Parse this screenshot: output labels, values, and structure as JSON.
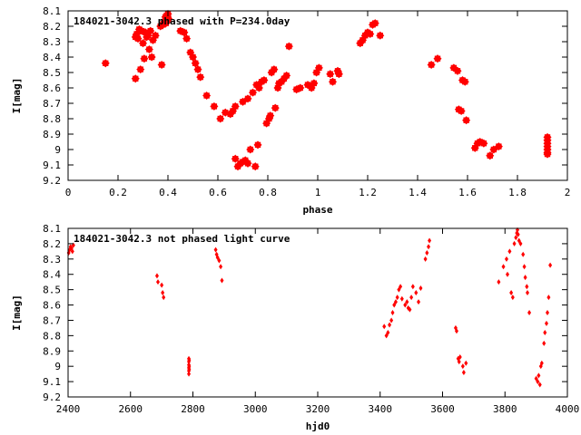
{
  "colors": {
    "points": "#ff0000",
    "axes": "#000000",
    "background": "#ffffff"
  },
  "chart_data": [
    {
      "type": "scatter",
      "title": "184021-3042.3 phased with P=234.0day",
      "xlabel": "phase",
      "ylabel": "I[mag]",
      "xlim": [
        0,
        2
      ],
      "ylim": [
        9.2,
        8.1
      ],
      "y_inverted": true,
      "grid": false,
      "xticks": [
        0,
        0.2,
        0.4,
        0.6,
        0.8,
        1,
        1.2,
        1.4,
        1.6,
        1.8,
        2
      ],
      "xtick_labels": [
        "0",
        "0.2",
        "0.4",
        "0.6",
        "0.8",
        "1",
        "1.2",
        "1.4",
        "1.6",
        "1.8",
        "2"
      ],
      "yticks": [
        8.1,
        8.2,
        8.3,
        8.4,
        8.5,
        8.6,
        8.7,
        8.8,
        8.9,
        9,
        9.1,
        9.2
      ],
      "ytick_labels": [
        "8.1",
        "8.2",
        "8.3",
        "8.4",
        "8.5",
        "8.6",
        "8.7",
        "8.8",
        "8.9",
        "9",
        "9.1",
        "9.2"
      ],
      "series": [
        {
          "points": [
            [
              0.15,
              8.44
            ],
            [
              0.27,
              8.27
            ],
            [
              0.27,
              8.54
            ],
            [
              0.275,
              8.25
            ],
            [
              0.28,
              8.28
            ],
            [
              0.285,
              8.22
            ],
            [
              0.29,
              8.48
            ],
            [
              0.295,
              8.23
            ],
            [
              0.3,
              8.31
            ],
            [
              0.305,
              8.41
            ],
            [
              0.31,
              8.24
            ],
            [
              0.315,
              8.27
            ],
            [
              0.32,
              8.26
            ],
            [
              0.325,
              8.35
            ],
            [
              0.33,
              8.23
            ],
            [
              0.335,
              8.4
            ],
            [
              0.34,
              8.29
            ],
            [
              0.35,
              8.26
            ],
            [
              0.37,
              8.2
            ],
            [
              0.375,
              8.45
            ],
            [
              0.38,
              8.19
            ],
            [
              0.385,
              8.17
            ],
            [
              0.39,
              8.14
            ],
            [
              0.392,
              8.18
            ],
            [
              0.395,
              8.13
            ],
            [
              0.398,
              8.16
            ],
            [
              0.4,
              8.12
            ],
            [
              0.402,
              8.15
            ],
            [
              0.45,
              8.23
            ],
            [
              0.465,
              8.24
            ],
            [
              0.475,
              8.28
            ],
            [
              0.49,
              8.37
            ],
            [
              0.5,
              8.4
            ],
            [
              0.51,
              8.44
            ],
            [
              0.52,
              8.48
            ],
            [
              0.53,
              8.53
            ],
            [
              0.555,
              8.65
            ],
            [
              0.585,
              8.72
            ],
            [
              0.61,
              8.8
            ],
            [
              0.63,
              8.76
            ],
            [
              0.65,
              8.77
            ],
            [
              0.66,
              8.75
            ],
            [
              0.67,
              9.06
            ],
            [
              0.68,
              9.11
            ],
            [
              0.69,
              9.09
            ],
            [
              0.7,
              9.08
            ],
            [
              0.71,
              9.07
            ],
            [
              0.72,
              9.09
            ],
            [
              0.73,
              9.0
            ],
            [
              0.75,
              9.11
            ],
            [
              0.76,
              8.97
            ],
            [
              0.67,
              8.72
            ],
            [
              0.7,
              8.69
            ],
            [
              0.72,
              8.67
            ],
            [
              0.74,
              8.63
            ],
            [
              0.755,
              8.58
            ],
            [
              0.765,
              8.6
            ],
            [
              0.775,
              8.56
            ],
            [
              0.785,
              8.55
            ],
            [
              0.795,
              8.83
            ],
            [
              0.805,
              8.8
            ],
            [
              0.81,
              8.78
            ],
            [
              0.815,
              8.5
            ],
            [
              0.825,
              8.48
            ],
            [
              0.83,
              8.73
            ],
            [
              0.84,
              8.6
            ],
            [
              0.845,
              8.57
            ],
            [
              0.855,
              8.56
            ],
            [
              0.865,
              8.54
            ],
            [
              0.875,
              8.52
            ],
            [
              0.885,
              8.33
            ],
            [
              0.915,
              8.61
            ],
            [
              0.93,
              8.6
            ],
            [
              0.96,
              8.58
            ],
            [
              0.975,
              8.6
            ],
            [
              0.985,
              8.57
            ],
            [
              0.995,
              8.5
            ],
            [
              1.005,
              8.47
            ],
            [
              1.05,
              8.51
            ],
            [
              1.06,
              8.56
            ],
            [
              1.08,
              8.49
            ],
            [
              1.085,
              8.51
            ],
            [
              1.17,
              8.31
            ],
            [
              1.18,
              8.29
            ],
            [
              1.19,
              8.26
            ],
            [
              1.2,
              8.24
            ],
            [
              1.21,
              8.25
            ],
            [
              1.22,
              8.19
            ],
            [
              1.23,
              8.18
            ],
            [
              1.25,
              8.26
            ],
            [
              1.455,
              8.45
            ],
            [
              1.48,
              8.41
            ],
            [
              1.545,
              8.47
            ],
            [
              1.56,
              8.49
            ],
            [
              1.565,
              8.74
            ],
            [
              1.575,
              8.75
            ],
            [
              1.58,
              8.55
            ],
            [
              1.59,
              8.56
            ],
            [
              1.595,
              8.81
            ],
            [
              1.63,
              8.99
            ],
            [
              1.64,
              8.96
            ],
            [
              1.65,
              8.95
            ],
            [
              1.665,
              8.96
            ],
            [
              1.69,
              9.04
            ],
            [
              1.705,
              9.0
            ],
            [
              1.725,
              8.98
            ],
            [
              1.92,
              8.92
            ],
            [
              1.92,
              8.94
            ],
            [
              1.92,
              8.96
            ],
            [
              1.92,
              8.98
            ],
            [
              1.92,
              9.0
            ],
            [
              1.92,
              9.02
            ],
            [
              1.92,
              9.03
            ]
          ]
        }
      ]
    },
    {
      "type": "scatter",
      "title": "184021-3042.3 not phased light curve",
      "xlabel": "hjd0",
      "ylabel": "I[mag]",
      "xlim": [
        2400,
        4000
      ],
      "ylim": [
        9.2,
        8.1
      ],
      "y_inverted": true,
      "grid": false,
      "xticks": [
        2400,
        2600,
        2800,
        3000,
        3200,
        3400,
        3600,
        3800,
        4000
      ],
      "xtick_labels": [
        "2400",
        "2600",
        "2800",
        "3000",
        "3200",
        "3400",
        "3600",
        "3800",
        "4000"
      ],
      "yticks": [
        8.1,
        8.2,
        8.3,
        8.4,
        8.5,
        8.6,
        8.7,
        8.8,
        8.9,
        9,
        9.1,
        9.2
      ],
      "ytick_labels": [
        "8.1",
        "8.2",
        "8.3",
        "8.4",
        "8.5",
        "8.6",
        "8.7",
        "8.8",
        "8.9",
        "9",
        "9.1",
        "9.2"
      ],
      "series": [
        {
          "points": [
            [
              2402,
              8.26
            ],
            [
              2405,
              8.24
            ],
            [
              2408,
              8.22
            ],
            [
              2411,
              8.23
            ],
            [
              2414,
              8.25
            ],
            [
              2417,
              8.21
            ],
            [
              2685,
              8.41
            ],
            [
              2688,
              8.45
            ],
            [
              2700,
              8.47
            ],
            [
              2703,
              8.52
            ],
            [
              2706,
              8.55
            ],
            [
              2787,
              8.95
            ],
            [
              2787,
              8.97
            ],
            [
              2787,
              8.99
            ],
            [
              2787,
              9.01
            ],
            [
              2787,
              9.03
            ],
            [
              2787,
              9.05
            ],
            [
              2788,
              8.96
            ],
            [
              2788,
              9.0
            ],
            [
              2788,
              9.02
            ],
            [
              2873,
              8.24
            ],
            [
              2876,
              8.27
            ],
            [
              2879,
              8.29
            ],
            [
              2884,
              8.31
            ],
            [
              2889,
              8.35
            ],
            [
              2893,
              8.44
            ],
            [
              3413,
              8.74
            ],
            [
              3420,
              8.8
            ],
            [
              3425,
              8.78
            ],
            [
              3430,
              8.73
            ],
            [
              3436,
              8.7
            ],
            [
              3440,
              8.65
            ],
            [
              3445,
              8.6
            ],
            [
              3450,
              8.58
            ],
            [
              3455,
              8.55
            ],
            [
              3460,
              8.5
            ],
            [
              3465,
              8.48
            ],
            [
              3470,
              8.56
            ],
            [
              3480,
              8.6
            ],
            [
              3486,
              8.58
            ],
            [
              3490,
              8.62
            ],
            [
              3495,
              8.63
            ],
            [
              3500,
              8.55
            ],
            [
              3505,
              8.48
            ],
            [
              3515,
              8.52
            ],
            [
              3523,
              8.58
            ],
            [
              3530,
              8.49
            ],
            [
              3545,
              8.3
            ],
            [
              3550,
              8.26
            ],
            [
              3555,
              8.22
            ],
            [
              3558,
              8.18
            ],
            [
              3642,
              8.75
            ],
            [
              3645,
              8.77
            ],
            [
              3650,
              8.95
            ],
            [
              3653,
              8.97
            ],
            [
              3656,
              8.94
            ],
            [
              3665,
              9.0
            ],
            [
              3668,
              9.04
            ],
            [
              3675,
              8.98
            ],
            [
              3780,
              8.45
            ],
            [
              3795,
              8.35
            ],
            [
              3805,
              8.3
            ],
            [
              3808,
              8.4
            ],
            [
              3815,
              8.25
            ],
            [
              3820,
              8.52
            ],
            [
              3825,
              8.55
            ],
            [
              3830,
              8.2
            ],
            [
              3835,
              8.16
            ],
            [
              3838,
              8.13
            ],
            [
              3840,
              8.11
            ],
            [
              3842,
              8.14
            ],
            [
              3845,
              8.18
            ],
            [
              3850,
              8.2
            ],
            [
              3858,
              8.27
            ],
            [
              3862,
              8.35
            ],
            [
              3865,
              8.42
            ],
            [
              3870,
              8.48
            ],
            [
              3872,
              8.52
            ],
            [
              3878,
              8.65
            ],
            [
              3900,
              9.08
            ],
            [
              3905,
              9.1
            ],
            [
              3908,
              9.06
            ],
            [
              3912,
              9.12
            ],
            [
              3915,
              9.0
            ],
            [
              3918,
              8.98
            ],
            [
              3925,
              8.85
            ],
            [
              3928,
              8.78
            ],
            [
              3933,
              8.72
            ],
            [
              3936,
              8.65
            ],
            [
              3940,
              8.55
            ],
            [
              3945,
              8.34
            ]
          ]
        }
      ]
    }
  ]
}
